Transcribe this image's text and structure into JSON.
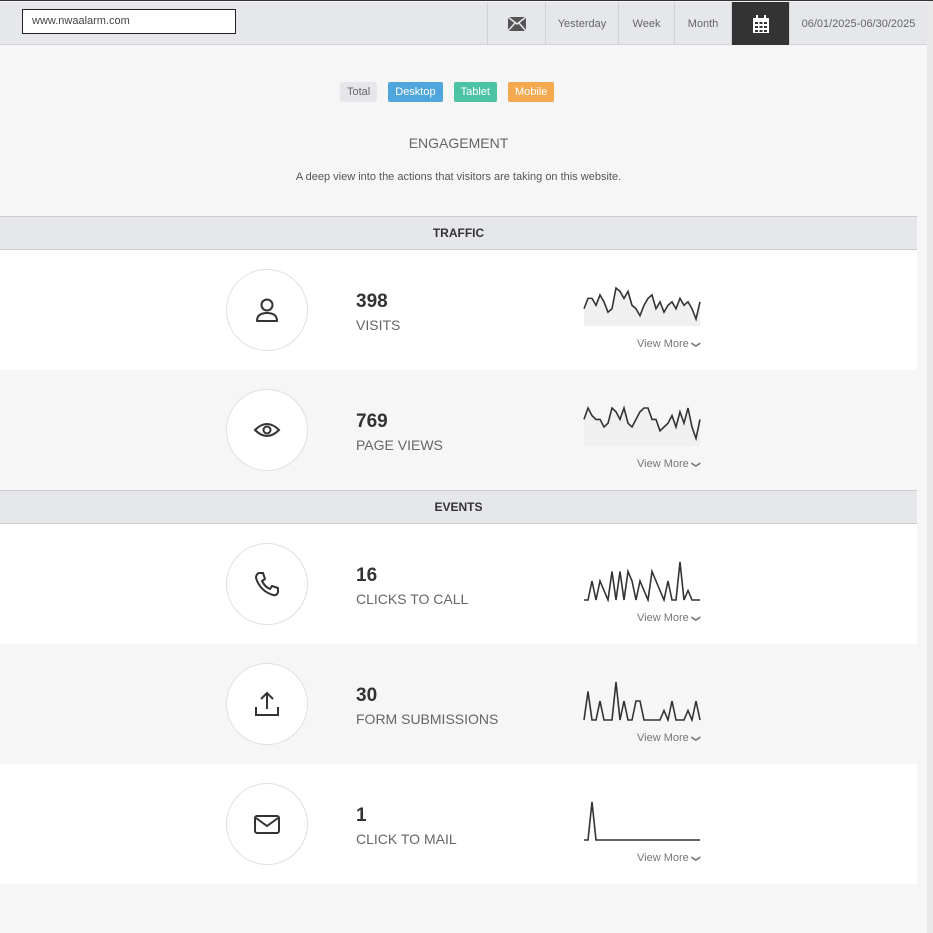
{
  "header": {
    "url": "www.nwaalarm.com",
    "buttons": [
      "Yesterday",
      "Week",
      "Month"
    ],
    "date_range": "06/01/2025-06/30/2025",
    "mail_icon": "envelope-icon",
    "calendar_icon": "calendar-icon"
  },
  "filters": [
    {
      "label": "Total",
      "color": "#e5e7eb"
    },
    {
      "label": "Desktop",
      "color": "#4ea6dc"
    },
    {
      "label": "Tablet",
      "color": "#4cc3a5"
    },
    {
      "label": "Mobile",
      "color": "#f5a94f"
    }
  ],
  "title": "ENGAGEMENT",
  "subtitle": "A deep view into the actions that visitors are taking on this website.",
  "sections": {
    "traffic": "TRAFFIC",
    "events": "EVENTS"
  },
  "view_more": "View More",
  "metrics": [
    {
      "icon": "user-icon",
      "value": "398",
      "label": "VISITS",
      "fill": true,
      "spark": [
        5,
        8,
        8,
        6,
        9,
        7,
        4,
        5,
        11,
        10,
        8,
        10,
        6,
        5,
        3,
        6,
        8,
        9,
        5,
        7,
        4,
        6,
        7,
        5,
        8,
        6,
        7,
        5,
        2,
        7
      ]
    },
    {
      "icon": "eye-icon",
      "value": "769",
      "label": "PAGE VIEWS",
      "fill": true,
      "spark": [
        7,
        10,
        8,
        7,
        7,
        5,
        6,
        10,
        9,
        7,
        10,
        6,
        5,
        7,
        9,
        10,
        10,
        7,
        7,
        4,
        5,
        6,
        8,
        5,
        9,
        6,
        10,
        5,
        2,
        7
      ]
    },
    {
      "icon": "phone-icon",
      "value": "16",
      "label": "CLICKS TO CALL",
      "fill": false,
      "spark": [
        0,
        0,
        2,
        0,
        2,
        1,
        0,
        3,
        0,
        3,
        0,
        3,
        2,
        0,
        2,
        1,
        0,
        3,
        2,
        1,
        0,
        2,
        0,
        0,
        4,
        0,
        1,
        0,
        0,
        0
      ]
    },
    {
      "icon": "upload-icon",
      "value": "30",
      "label": "FORM SUBMISSIONS",
      "fill": false,
      "spark": [
        0,
        3,
        0,
        0,
        2,
        0,
        0,
        0,
        4,
        0,
        2,
        0,
        0,
        2,
        2,
        0,
        0,
        0,
        0,
        0,
        1,
        0,
        2,
        0,
        0,
        0,
        1,
        0,
        2,
        0
      ]
    },
    {
      "icon": "mail-icon",
      "value": "1",
      "label": "CLICK TO MAIL",
      "fill": false,
      "spark": [
        0,
        0,
        1,
        0,
        0,
        0,
        0,
        0,
        0,
        0,
        0,
        0,
        0,
        0,
        0,
        0,
        0,
        0,
        0,
        0,
        0,
        0,
        0,
        0,
        0,
        0,
        0,
        0,
        0,
        0
      ]
    }
  ]
}
